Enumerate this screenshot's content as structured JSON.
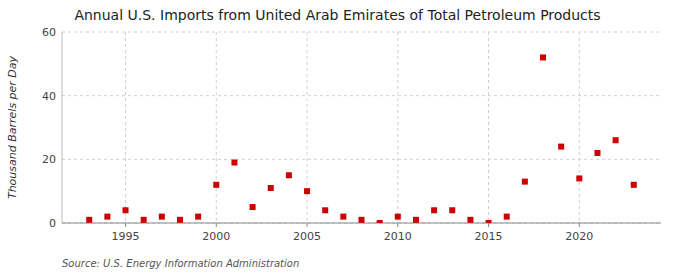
{
  "chart_data": {
    "type": "scatter",
    "title": "Annual U.S. Imports from United Arab Emirates of Total Petroleum Products",
    "ylabel": "Thousand Barrels per Day",
    "source": "Source: U.S. Energy Information Administration",
    "x": [
      1993,
      1994,
      1995,
      1996,
      1997,
      1998,
      1999,
      2000,
      2001,
      2002,
      2003,
      2004,
      2005,
      2006,
      2007,
      2008,
      2009,
      2010,
      2011,
      2012,
      2013,
      2014,
      2015,
      2016,
      2017,
      2018,
      2019,
      2020,
      2021,
      2022,
      2023
    ],
    "values": [
      1,
      2,
      4,
      1,
      2,
      1,
      2,
      12,
      19,
      5,
      11,
      15,
      10,
      4,
      2,
      1,
      0,
      2,
      1,
      4,
      4,
      1,
      0,
      2,
      13,
      52,
      24,
      14,
      22,
      26,
      12
    ],
    "color": "#cc0000",
    "marker": "square",
    "xlim": [
      1991.5,
      2024.5
    ],
    "xticks": [
      1995,
      2000,
      2005,
      2010,
      2015,
      2020
    ],
    "ylim": [
      0,
      60
    ],
    "yticks": [
      0,
      20,
      40,
      60
    ],
    "grid": true
  }
}
